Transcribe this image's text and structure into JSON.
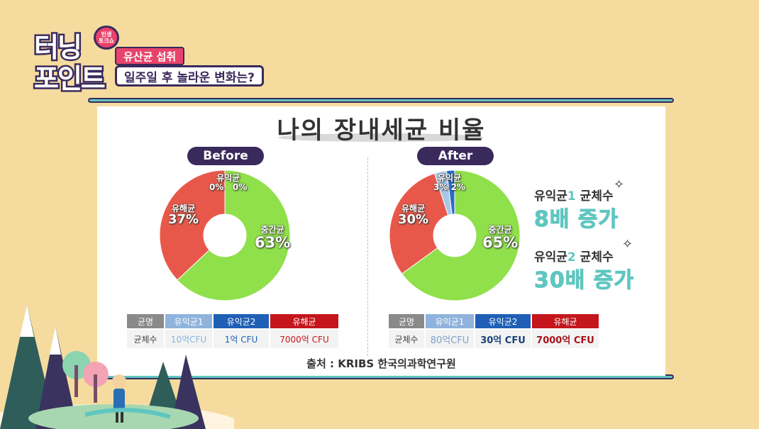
{
  "program": {
    "logo_line1": "터닝",
    "logo_line2": "포인트",
    "logo_badge": "인생\n토크쇼",
    "topic": "유산균 섭취",
    "headline": "일주일 후 놀라운 변화는?"
  },
  "slide": {
    "title": "나의 장내세균 비율",
    "before_label": "Before",
    "after_label": "After",
    "source": "출처 : KRIBS 한국의과학연구원"
  },
  "before_labels": {
    "good_name": "유익균",
    "good1_pct": "0%",
    "good2_pct": "0%",
    "harmful_name": "유해균",
    "harmful_pct": "37%",
    "neutral_name": "중간균",
    "neutral_pct": "63%"
  },
  "after_labels": {
    "good_name": "유익균",
    "good1_pct": "3%",
    "good2_pct": "2%",
    "harmful_name": "유해균",
    "harmful_pct": "30%",
    "neutral_name": "중간균",
    "neutral_pct": "65%"
  },
  "before_table": {
    "headers": [
      "균명",
      "유익균1",
      "유익균2",
      "유해균"
    ],
    "row_label": "균체수",
    "values": [
      "10억CFU",
      "1억 CFU",
      "7000억 CFU"
    ]
  },
  "after_table": {
    "headers": [
      "균명",
      "유익균1",
      "유익균2",
      "유해균"
    ],
    "row_label": "균체수",
    "values": [
      "80억CFU",
      "30억 CFU",
      "7000억 CFU"
    ]
  },
  "increase": {
    "line1_prefix": "유익균",
    "line1_num": "1",
    "line1_suffix": " 균체수",
    "line1_value": "8배 증가",
    "line2_prefix": "유익균",
    "line2_num": "2",
    "line2_suffix": " 균체수",
    "line2_value": "30배 증가"
  },
  "colors": {
    "neutral": "#8fe04a",
    "harmful": "#e8584a",
    "good1": "#a8c8e8",
    "good2": "#2b6cc4",
    "header_gray": "#8a8a8a",
    "header_good1": "#8fb3dc",
    "header_good2": "#1f5fb5",
    "header_harmful": "#c4161c",
    "accent": "#5fc6c0",
    "dark": "#3a2a5c"
  },
  "chart_data": [
    {
      "type": "pie",
      "title": "Before",
      "categories": [
        "중간균",
        "유해균",
        "유익균1",
        "유익균2"
      ],
      "values": [
        63,
        37,
        0,
        0
      ]
    },
    {
      "type": "pie",
      "title": "After",
      "categories": [
        "중간균",
        "유해균",
        "유익균1",
        "유익균2"
      ],
      "values": [
        65,
        30,
        3,
        2
      ]
    }
  ]
}
